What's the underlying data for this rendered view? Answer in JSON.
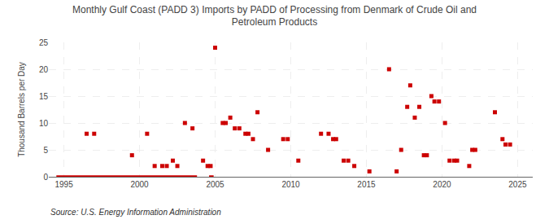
{
  "chart_data": {
    "type": "scatter",
    "title": "Monthly Gulf Coast (PADD 3) Imports by PADD of Processing from Denmark of Crude Oil and\nPetroleum Products",
    "ylabel": "Thousand Barrels per Day",
    "annotations": [
      "Source: U.S. Energy Information Administration"
    ],
    "color": "#cc0000",
    "marker": "square",
    "xlim": [
      1994.0,
      2026.0
    ],
    "ylim": [
      0,
      25
    ],
    "xticks": [
      1995,
      2000,
      2005,
      2010,
      2015,
      2020,
      2025
    ],
    "yticks": [
      0,
      5,
      10,
      15,
      20,
      25
    ],
    "grid": true,
    "x": [
      1996.5,
      1997.0,
      1999.5,
      2000.5,
      2001.0,
      2001.5,
      2001.8,
      2002.2,
      2002.5,
      2003.0,
      2003.5,
      2004.2,
      2004.5,
      2004.7,
      2005.0,
      2005.5,
      2005.7,
      2006.0,
      2006.3,
      2006.6,
      2007.0,
      2007.2,
      2007.5,
      2007.8,
      2008.5,
      2009.5,
      2009.8,
      2010.5,
      2012.0,
      2012.5,
      2012.8,
      2013.0,
      2013.5,
      2013.8,
      2014.2,
      2015.2,
      2016.5,
      2017.0,
      2017.3,
      2017.7,
      2017.9,
      2018.2,
      2018.5,
      2018.8,
      2019.0,
      2019.3,
      2019.5,
      2019.8,
      2020.2,
      2020.5,
      2020.8,
      2021.0,
      2021.8,
      2022.0,
      2022.2,
      2023.5,
      2024.0,
      2024.2,
      2024.5
    ],
    "values": [
      8,
      8,
      4,
      8,
      2,
      2,
      2,
      3,
      2,
      10,
      9,
      3,
      2,
      2,
      24,
      10,
      10,
      11,
      9,
      9,
      8,
      8,
      7,
      12,
      5,
      7,
      7,
      3,
      8,
      8,
      7,
      7,
      3,
      3,
      2,
      1,
      20,
      1,
      5,
      13,
      17,
      11,
      13,
      4,
      4,
      15,
      14,
      14,
      10,
      3,
      3,
      3,
      2,
      5,
      5,
      12,
      7,
      6,
      6
    ],
    "zero_line_segments": [
      [
        1994.5,
        2003.8
      ],
      [
        2004.6,
        2004.9
      ]
    ]
  }
}
